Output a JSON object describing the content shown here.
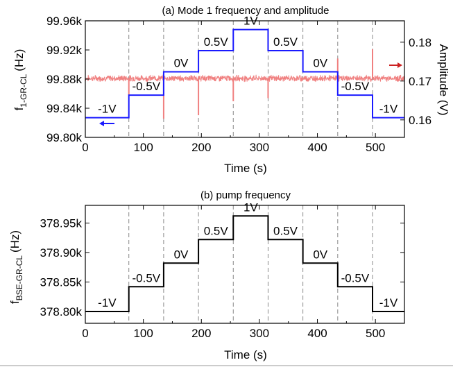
{
  "chart_data": [
    {
      "type": "line",
      "title": "(a) Mode 1 frequency and amplitude",
      "xlabel": "Time (s)",
      "ylabel_main": "f",
      "ylabel_sub": "1-GR-CL",
      "ylabel_unit": "(Hz)",
      "y2label": "Amplitude (V)",
      "xlim": [
        0,
        550
      ],
      "ylim": [
        99800,
        99960
      ],
      "y2lim": [
        0.1555,
        0.1855
      ],
      "xticks": [
        0,
        100,
        200,
        300,
        400,
        500
      ],
      "xtick_labels": [
        "0",
        "100",
        "200",
        "300",
        "400",
        "500"
      ],
      "yticks": [
        99800,
        99840,
        99880,
        99920,
        99960
      ],
      "ytick_labels": [
        "99.80k",
        "99.84k",
        "99.88k",
        "99.92k",
        "99.96k"
      ],
      "y2ticks": [
        0.16,
        0.17,
        0.18
      ],
      "y2tick_labels": [
        "0.16",
        "0.17",
        "0.18"
      ],
      "step_boundaries": [
        75,
        135,
        195,
        255,
        315,
        375,
        435,
        495
      ],
      "segment_labels": [
        "-1V",
        "-0.5V",
        "0V",
        "0.5V",
        "1V",
        "0.5V",
        "0V",
        "-0.5V",
        "-1V"
      ],
      "series": [
        {
          "axis": "left",
          "color": "#1a1aff",
          "x": [
            0,
            75,
            75,
            135,
            135,
            195,
            195,
            255,
            255,
            315,
            315,
            375,
            375,
            435,
            435,
            495,
            495,
            550
          ],
          "values": [
            99827,
            99827,
            99858,
            99858,
            99890,
            99890,
            99919,
            99919,
            99948,
            99948,
            99919,
            99919,
            99890,
            99890,
            99858,
            99858,
            99827,
            99827
          ]
        },
        {
          "axis": "right",
          "color": "#f08080",
          "baseline": 0.1707,
          "spike_times": [
            75,
            135,
            195,
            255,
            315,
            435,
            495
          ],
          "spike_values": [
            0.1664,
            0.1603,
            0.1612,
            0.1648,
            0.1656,
            0.1758,
            0.1782
          ]
        }
      ],
      "colors": {
        "freq": "#1a1aff",
        "amplitude": "#f08080",
        "amplitude_arrow": "#cc2222",
        "grid": "#888888"
      }
    },
    {
      "type": "line",
      "title": "(b) pump frequency",
      "xlabel": "Time (s)",
      "ylabel_main": "f",
      "ylabel_sub": "BSE-GR-CL",
      "ylabel_unit": "(Hz)",
      "xlim": [
        0,
        550
      ],
      "ylim": [
        378780,
        378980
      ],
      "xticks": [
        0,
        100,
        200,
        300,
        400,
        500
      ],
      "xtick_labels": [
        "0",
        "100",
        "200",
        "300",
        "400",
        "500"
      ],
      "yticks": [
        378800,
        378850,
        378900,
        378950
      ],
      "ytick_labels": [
        "378.80k",
        "378.85k",
        "378.90k",
        "378.95k"
      ],
      "step_boundaries": [
        75,
        135,
        195,
        255,
        315,
        375,
        435,
        495
      ],
      "segment_labels": [
        "-1V",
        "-0.5V",
        "0V",
        "0.5V",
        "1V",
        "0.5V",
        "0V",
        "-0.5V",
        "-1V"
      ],
      "series": [
        {
          "color": "#000000",
          "x": [
            0,
            75,
            75,
            135,
            135,
            195,
            195,
            255,
            255,
            315,
            315,
            375,
            375,
            435,
            435,
            495,
            495,
            550
          ],
          "values": [
            378800,
            378800,
            378842,
            378842,
            378882,
            378882,
            378922,
            378922,
            378962,
            378962,
            378922,
            378922,
            378882,
            378882,
            378842,
            378842,
            378800,
            378800
          ]
        }
      ]
    }
  ]
}
